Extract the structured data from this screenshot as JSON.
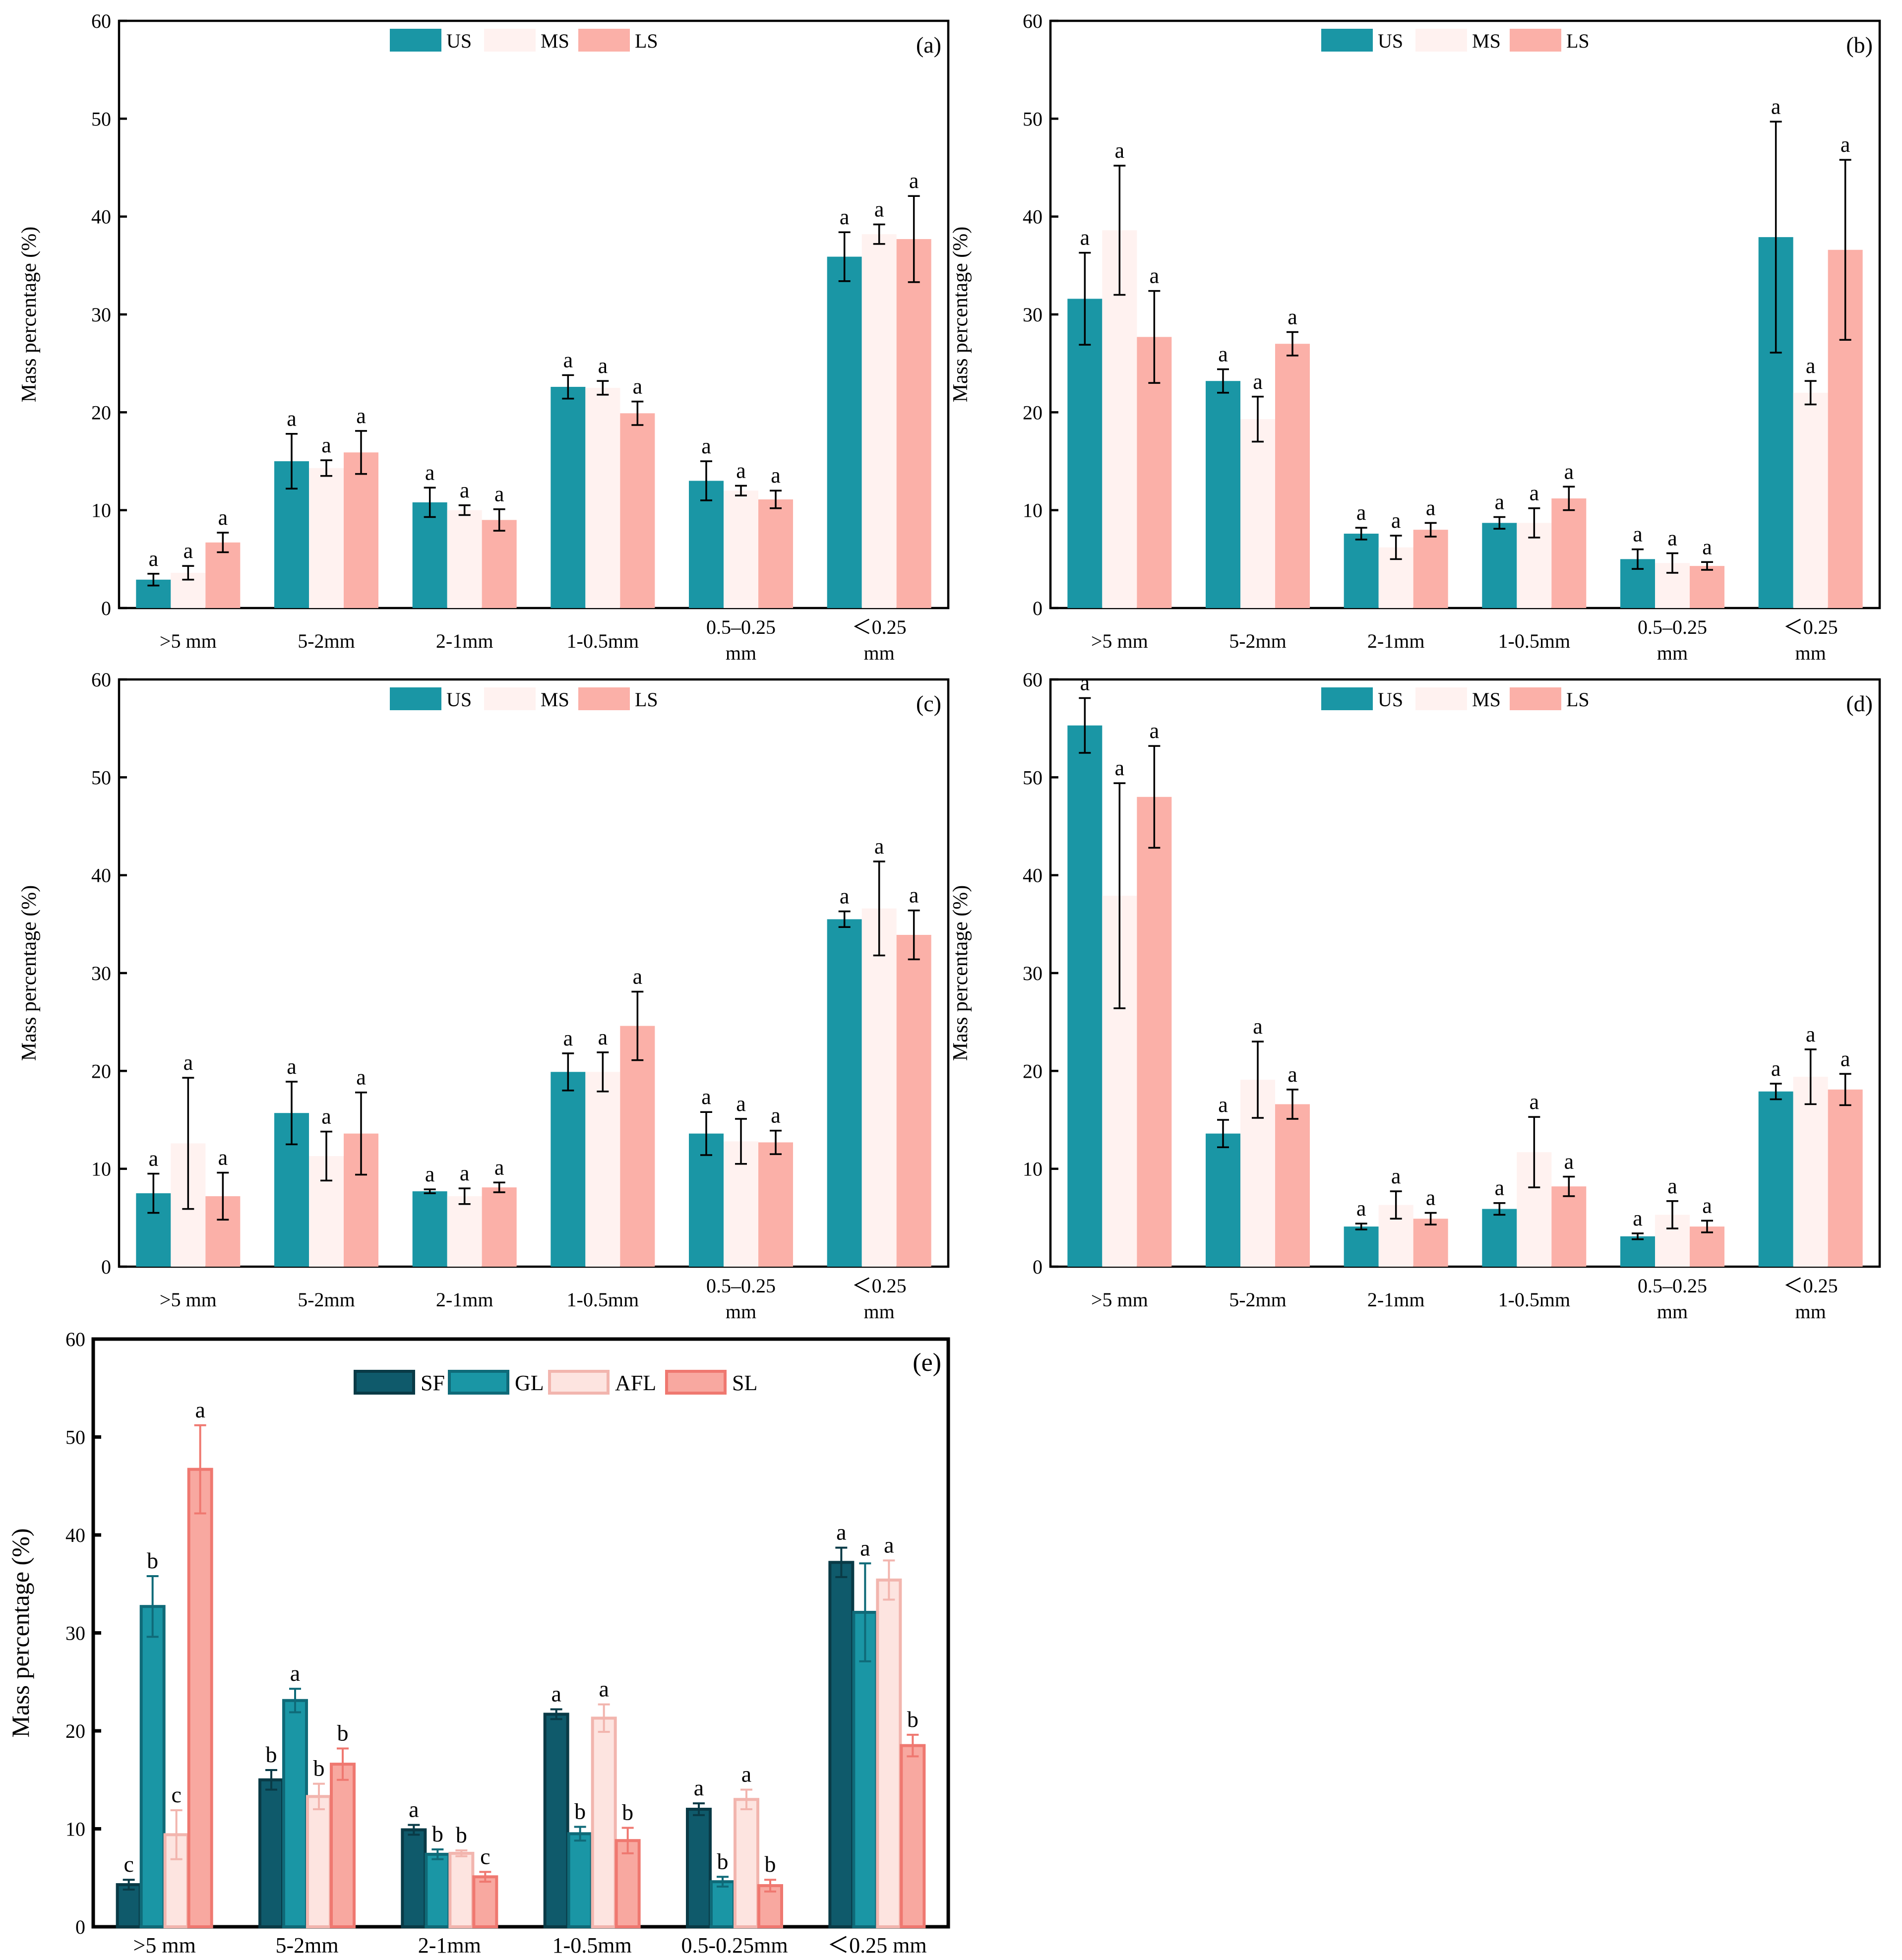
{
  "colors": {
    "US": "#1a96a5",
    "MS": "#fff2f0",
    "LS": "#fbb0a8",
    "SF": "#0f5a6b",
    "GL": "#1a96a5",
    "AFL": "#fde4e0",
    "SL": "#f8a8a0",
    "SF_edge": "#093a46",
    "GL_edge": "#0f6a78",
    "AFL_edge": "#f2b5ae",
    "SL_edge": "#ef7870"
  },
  "chart_data": [
    {
      "id": "a",
      "type": "bar",
      "title": "",
      "panel_label": "(a)",
      "ylabel": "Mass percentage (%)",
      "xlabel": "",
      "ylim": [
        0,
        60
      ],
      "yticks": [
        "0",
        "10",
        "20",
        "30",
        "40",
        "50",
        "60"
      ],
      "categories": [
        ">5 mm",
        "5-2mm",
        "2-1mm",
        "1-0.5mm",
        "0.5–0.25 mm",
        "＜0.25 mm"
      ],
      "legend": [
        "US",
        "MS",
        "LS"
      ],
      "series": [
        {
          "name": "US",
          "values": [
            2.9,
            15.0,
            10.8,
            22.6,
            13.0,
            35.9
          ],
          "err": [
            0.6,
            2.8,
            1.5,
            1.2,
            2.0,
            2.5
          ],
          "labels": [
            "a",
            "a",
            "a",
            "a",
            "a",
            "a"
          ]
        },
        {
          "name": "MS",
          "values": [
            3.6,
            14.3,
            10.0,
            22.5,
            12.0,
            38.2
          ],
          "err": [
            0.7,
            0.8,
            0.5,
            0.7,
            0.5,
            1.0
          ],
          "labels": [
            "a",
            "a",
            "a",
            "a",
            "a",
            "a"
          ]
        },
        {
          "name": "LS",
          "values": [
            6.7,
            15.9,
            9.0,
            19.9,
            11.1,
            37.7
          ],
          "err": [
            1.0,
            2.2,
            1.1,
            1.2,
            0.9,
            4.4
          ],
          "labels": [
            "a",
            "a",
            "a",
            "a",
            "a",
            "a"
          ]
        }
      ]
    },
    {
      "id": "b",
      "type": "bar",
      "title": "",
      "panel_label": "(b)",
      "ylabel": "Mass percentage (%)",
      "xlabel": "",
      "ylim": [
        0,
        60
      ],
      "yticks": [
        "0",
        "10",
        "20",
        "30",
        "40",
        "50",
        "60"
      ],
      "categories": [
        ">5 mm",
        "5-2mm",
        "2-1mm",
        "1-0.5mm",
        "0.5–0.25 mm",
        "＜0.25 mm"
      ],
      "legend": [
        "US",
        "MS",
        "LS"
      ],
      "series": [
        {
          "name": "US",
          "values": [
            31.6,
            23.2,
            7.6,
            8.7,
            5.0,
            37.9
          ],
          "err": [
            4.7,
            1.2,
            0.6,
            0.6,
            1.0,
            11.8
          ],
          "labels": [
            "a",
            "a",
            "a",
            "a",
            "a",
            "a"
          ]
        },
        {
          "name": "MS",
          "values": [
            38.6,
            19.3,
            6.2,
            8.7,
            4.6,
            22.0
          ],
          "err": [
            6.6,
            2.3,
            1.2,
            1.5,
            1.0,
            1.2
          ],
          "labels": [
            "a",
            "a",
            "a",
            "a",
            "a",
            "a"
          ]
        },
        {
          "name": "LS",
          "values": [
            27.7,
            27.0,
            8.0,
            11.2,
            4.3,
            36.6
          ],
          "err": [
            4.7,
            1.2,
            0.7,
            1.2,
            0.4,
            9.2
          ],
          "labels": [
            "a",
            "a",
            "a",
            "a",
            "a",
            "a"
          ]
        }
      ]
    },
    {
      "id": "c",
      "type": "bar",
      "title": "",
      "panel_label": "(c)",
      "ylabel": "Mass percentage (%)",
      "xlabel": "",
      "ylim": [
        0,
        60
      ],
      "yticks": [
        "0",
        "10",
        "20",
        "30",
        "40",
        "50",
        "60"
      ],
      "categories": [
        ">5 mm",
        "5-2mm",
        "2-1mm",
        "1-0.5mm",
        "0.5–0.25 mm",
        "＜0.25 mm"
      ],
      "legend": [
        "US",
        "MS",
        "LS"
      ],
      "series": [
        {
          "name": "US",
          "values": [
            7.5,
            15.7,
            7.7,
            19.9,
            13.6,
            35.5
          ],
          "err": [
            2.0,
            3.2,
            0.2,
            1.9,
            2.2,
            0.8
          ],
          "labels": [
            "a",
            "a",
            "a",
            "a",
            "a",
            "a"
          ]
        },
        {
          "name": "MS",
          "values": [
            12.6,
            11.3,
            7.2,
            19.9,
            12.8,
            36.6
          ],
          "err": [
            6.7,
            2.5,
            0.8,
            2.0,
            2.3,
            4.8
          ],
          "labels": [
            "a",
            "a",
            "a",
            "a",
            "a",
            "a"
          ]
        },
        {
          "name": "LS",
          "values": [
            7.2,
            13.6,
            8.1,
            24.6,
            12.7,
            33.9
          ],
          "err": [
            2.4,
            4.2,
            0.5,
            3.5,
            1.2,
            2.5
          ],
          "labels": [
            "a",
            "a",
            "a",
            "a",
            "a",
            "a"
          ]
        }
      ]
    },
    {
      "id": "d",
      "type": "bar",
      "title": "",
      "panel_label": "(d)",
      "ylabel": "Mass percentage (%)",
      "xlabel": "",
      "ylim": [
        0,
        60
      ],
      "yticks": [
        "0",
        "10",
        "20",
        "30",
        "40",
        "50",
        "60"
      ],
      "categories": [
        ">5 mm",
        "5-2mm",
        "2-1mm",
        "1-0.5mm",
        "0.5–0.25 mm",
        "＜0.25 mm"
      ],
      "legend": [
        "US",
        "MS",
        "LS"
      ],
      "series": [
        {
          "name": "US",
          "values": [
            55.3,
            13.6,
            4.1,
            5.9,
            3.1,
            17.9
          ],
          "err": [
            2.8,
            1.4,
            0.3,
            0.6,
            0.3,
            0.8
          ],
          "labels": [
            "a",
            "a",
            "a",
            "a",
            "a",
            "a"
          ]
        },
        {
          "name": "MS",
          "values": [
            37.9,
            19.1,
            6.3,
            11.7,
            5.3,
            19.4
          ],
          "err": [
            11.5,
            3.9,
            1.4,
            3.6,
            1.4,
            2.8
          ],
          "labels": [
            "a",
            "a",
            "a",
            "a",
            "a",
            "a"
          ]
        },
        {
          "name": "LS",
          "values": [
            48.0,
            16.6,
            4.9,
            8.2,
            4.1,
            18.1
          ],
          "err": [
            5.2,
            1.5,
            0.6,
            1.0,
            0.6,
            1.6
          ],
          "labels": [
            "a",
            "a",
            "a",
            "a",
            "a",
            "a"
          ]
        }
      ]
    },
    {
      "id": "e",
      "type": "bar",
      "title": "",
      "panel_label": "(e)",
      "ylabel": "Mass percentage (%)",
      "xlabel": "",
      "ylim": [
        0,
        60
      ],
      "yticks": [
        "0",
        "10",
        "20",
        "30",
        "40",
        "50",
        "60"
      ],
      "categories": [
        ">5 mm",
        "5-2mm",
        "2-1mm",
        "1-0.5mm",
        "0.5-0.25mm",
        "＜0.25 mm"
      ],
      "legend": [
        "SF",
        "GL",
        "AFL",
        "SL"
      ],
      "series": [
        {
          "name": "SF",
          "values": [
            4.3,
            15.0,
            9.9,
            21.7,
            12.0,
            37.2
          ],
          "err": [
            0.5,
            1.0,
            0.5,
            0.5,
            0.6,
            1.5
          ],
          "labels": [
            "c",
            "b",
            "a",
            "a",
            "a",
            "a"
          ]
        },
        {
          "name": "GL",
          "values": [
            32.7,
            23.1,
            7.4,
            9.5,
            4.6,
            32.1
          ],
          "err": [
            3.1,
            1.2,
            0.5,
            0.7,
            0.5,
            5.0
          ],
          "labels": [
            "b",
            "a",
            "b",
            "b",
            "b",
            "a"
          ]
        },
        {
          "name": "AFL",
          "values": [
            9.4,
            13.3,
            7.5,
            21.3,
            13.0,
            35.4
          ],
          "err": [
            2.5,
            1.3,
            0.3,
            1.4,
            1.0,
            2.0
          ],
          "labels": [
            "c",
            "b",
            "b",
            "a",
            "a",
            "a"
          ]
        },
        {
          "name": "SL",
          "values": [
            46.7,
            16.6,
            5.1,
            8.8,
            4.2,
            18.5
          ],
          "err": [
            4.5,
            1.6,
            0.5,
            1.3,
            0.6,
            1.1
          ],
          "labels": [
            "a",
            "b",
            "c",
            "b",
            "b",
            "b"
          ]
        }
      ]
    }
  ]
}
